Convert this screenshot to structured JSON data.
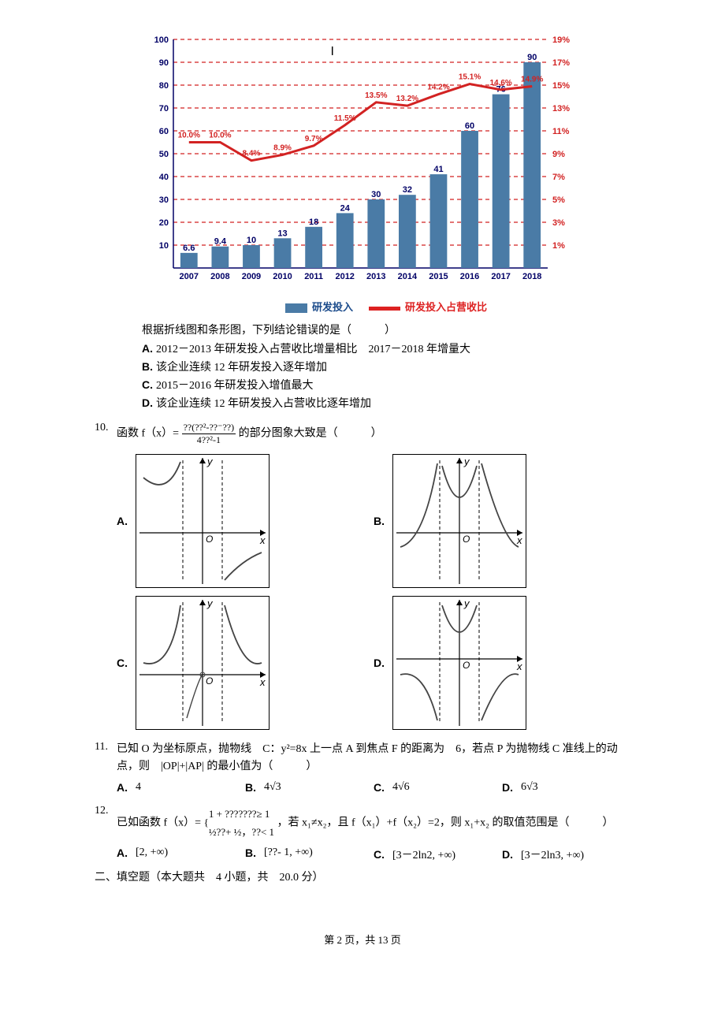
{
  "chart": {
    "type": "bar+line",
    "years": [
      "2007",
      "2008",
      "2009",
      "2010",
      "2011",
      "2012",
      "2013",
      "2014",
      "2015",
      "2016",
      "2017",
      "2018"
    ],
    "bar_values": [
      6.6,
      9.4,
      10,
      13,
      18,
      24,
      30,
      32,
      41,
      60,
      76,
      90
    ],
    "bar_labels": [
      "6.6",
      "9.4",
      "10",
      "13",
      "18",
      "24",
      "30",
      "32",
      "41",
      "60",
      "76",
      "90"
    ],
    "line_values": [
      10.0,
      10.0,
      8.4,
      8.9,
      9.7,
      11.5,
      13.5,
      13.2,
      14.2,
      15.1,
      14.6,
      14.9
    ],
    "line_labels": [
      "10.0%",
      "10.0%",
      "8.4%",
      "8.9%",
      "9.7%",
      "11.5%",
      "13.5%",
      "13.2%",
      "14.2%",
      "15.1%",
      "14.6%",
      "14.9%"
    ],
    "y_left_max": 100,
    "y_left_step": 10,
    "y_right_ticks": [
      "1%",
      "3%",
      "5%",
      "7%",
      "9%",
      "11%",
      "13%",
      "15%",
      "17%",
      "19%"
    ],
    "bar_color": "#4a7ba6",
    "line_color": "#d22222",
    "grid_color": "#d22222",
    "axis_color": "#000066",
    "bg": "#ffffff",
    "tick_font": 11,
    "value_font": 11,
    "legend_bar": "研发投入",
    "legend_line": "研发投入占营收比"
  },
  "q9": {
    "stem": "根据折线图和条形图，下列结论错误的是（　　　）",
    "A": "2012－2013 年研发投入占营收比增量相比　2017－2018 年增量大",
    "B": "该企业连续 12 年研发投入逐年增加",
    "C": "2015－2016 年研发投入增值最大",
    "D": "该企业连续 12 年研发投入占营收比逐年增加"
  },
  "q10": {
    "num": "10.",
    "stem_a": "函数 f（x）=",
    "frac_top": "??(??²-??⁻??)",
    "frac_bot": "4??²-1",
    "stem_b": "的部分图象大致是（　　　）",
    "A": "A.",
    "B": "B.",
    "C": "C.",
    "D": "D."
  },
  "q11": {
    "num": "11.",
    "stem": "已知 O 为坐标原点，抛物线　C：y²=8x 上一点 A 到焦点 F 的距离为　6，若点 P 为抛物线 C 准线上的动点，则　|OP|+|AP| 的最小值为（　　　）",
    "A": "4",
    "B": "4√3",
    "C": "4√6",
    "D": "6√3"
  },
  "q12": {
    "num": "12.",
    "stem_a": "已如函数 f（x）=",
    "piece1": "1 + ???????≥ 1",
    "piece2_a": "½??+ ½，??< 1",
    "stem_b": "，若 x₁≠x₂，且 f（x₁）+f（x₂）=2，则 x₁+x₂ 的取值范围是（　　　）",
    "A": "[2, +∞)",
    "B": "[??- 1, +∞)",
    "C": "[3－2ln2, +∞)",
    "D": "[3－2ln3, +∞)"
  },
  "section2": "二、填空题（本大题共　4 小题，共　20.0 分）",
  "footer": "第 2 页，共 13 页",
  "graph": {
    "axis_color": "#000",
    "curve_color": "#444",
    "dash": "4 3",
    "xlabel": "x",
    "ylabel": "y",
    "origin": "O"
  }
}
